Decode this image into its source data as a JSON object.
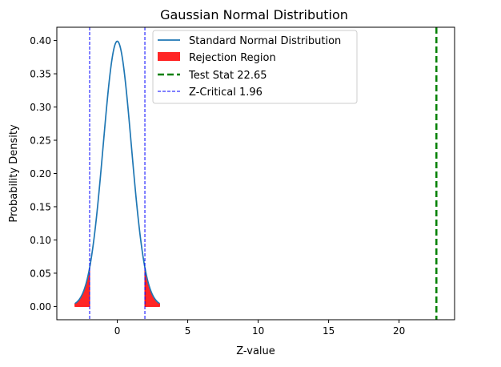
{
  "chart_data": {
    "type": "line",
    "title": "Gaussian Normal Distribution",
    "xlabel": "Z-value",
    "ylabel": "Probability Density",
    "xlim": [
      -4.29,
      23.94
    ],
    "ylim": [
      -0.02,
      0.42
    ],
    "x_ticks": [
      0,
      5,
      10,
      15,
      20
    ],
    "y_ticks": [
      0.0,
      0.05,
      0.1,
      0.15,
      0.2,
      0.25,
      0.3,
      0.35,
      0.4
    ],
    "x_tick_labels": [
      "0",
      "5",
      "10",
      "15",
      "20"
    ],
    "y_tick_labels": [
      "0.00",
      "0.05",
      "0.10",
      "0.15",
      "0.20",
      "0.25",
      "0.30",
      "0.35",
      "0.40"
    ],
    "grid": false,
    "legend_position": "top-center",
    "series": [
      {
        "name": "Standard Normal Distribution",
        "kind": "line",
        "color": "#1f77b4",
        "domain": [
          -3,
          3
        ],
        "function": "standard-normal-pdf"
      }
    ],
    "rejection_region": {
      "name": "Rejection Region",
      "color": "#ff0000",
      "alpha": 0.85,
      "ranges": [
        [
          -3,
          -1.96
        ],
        [
          1.96,
          3
        ]
      ]
    },
    "test_stat": {
      "name": "Test Stat 22.65",
      "value": 22.65,
      "color": "#008000",
      "style": "dashed"
    },
    "z_critical": {
      "name": "Z-Critical 1.96",
      "values": [
        -1.96,
        1.96
      ],
      "color": "#0000ff",
      "style": "dashed"
    }
  }
}
